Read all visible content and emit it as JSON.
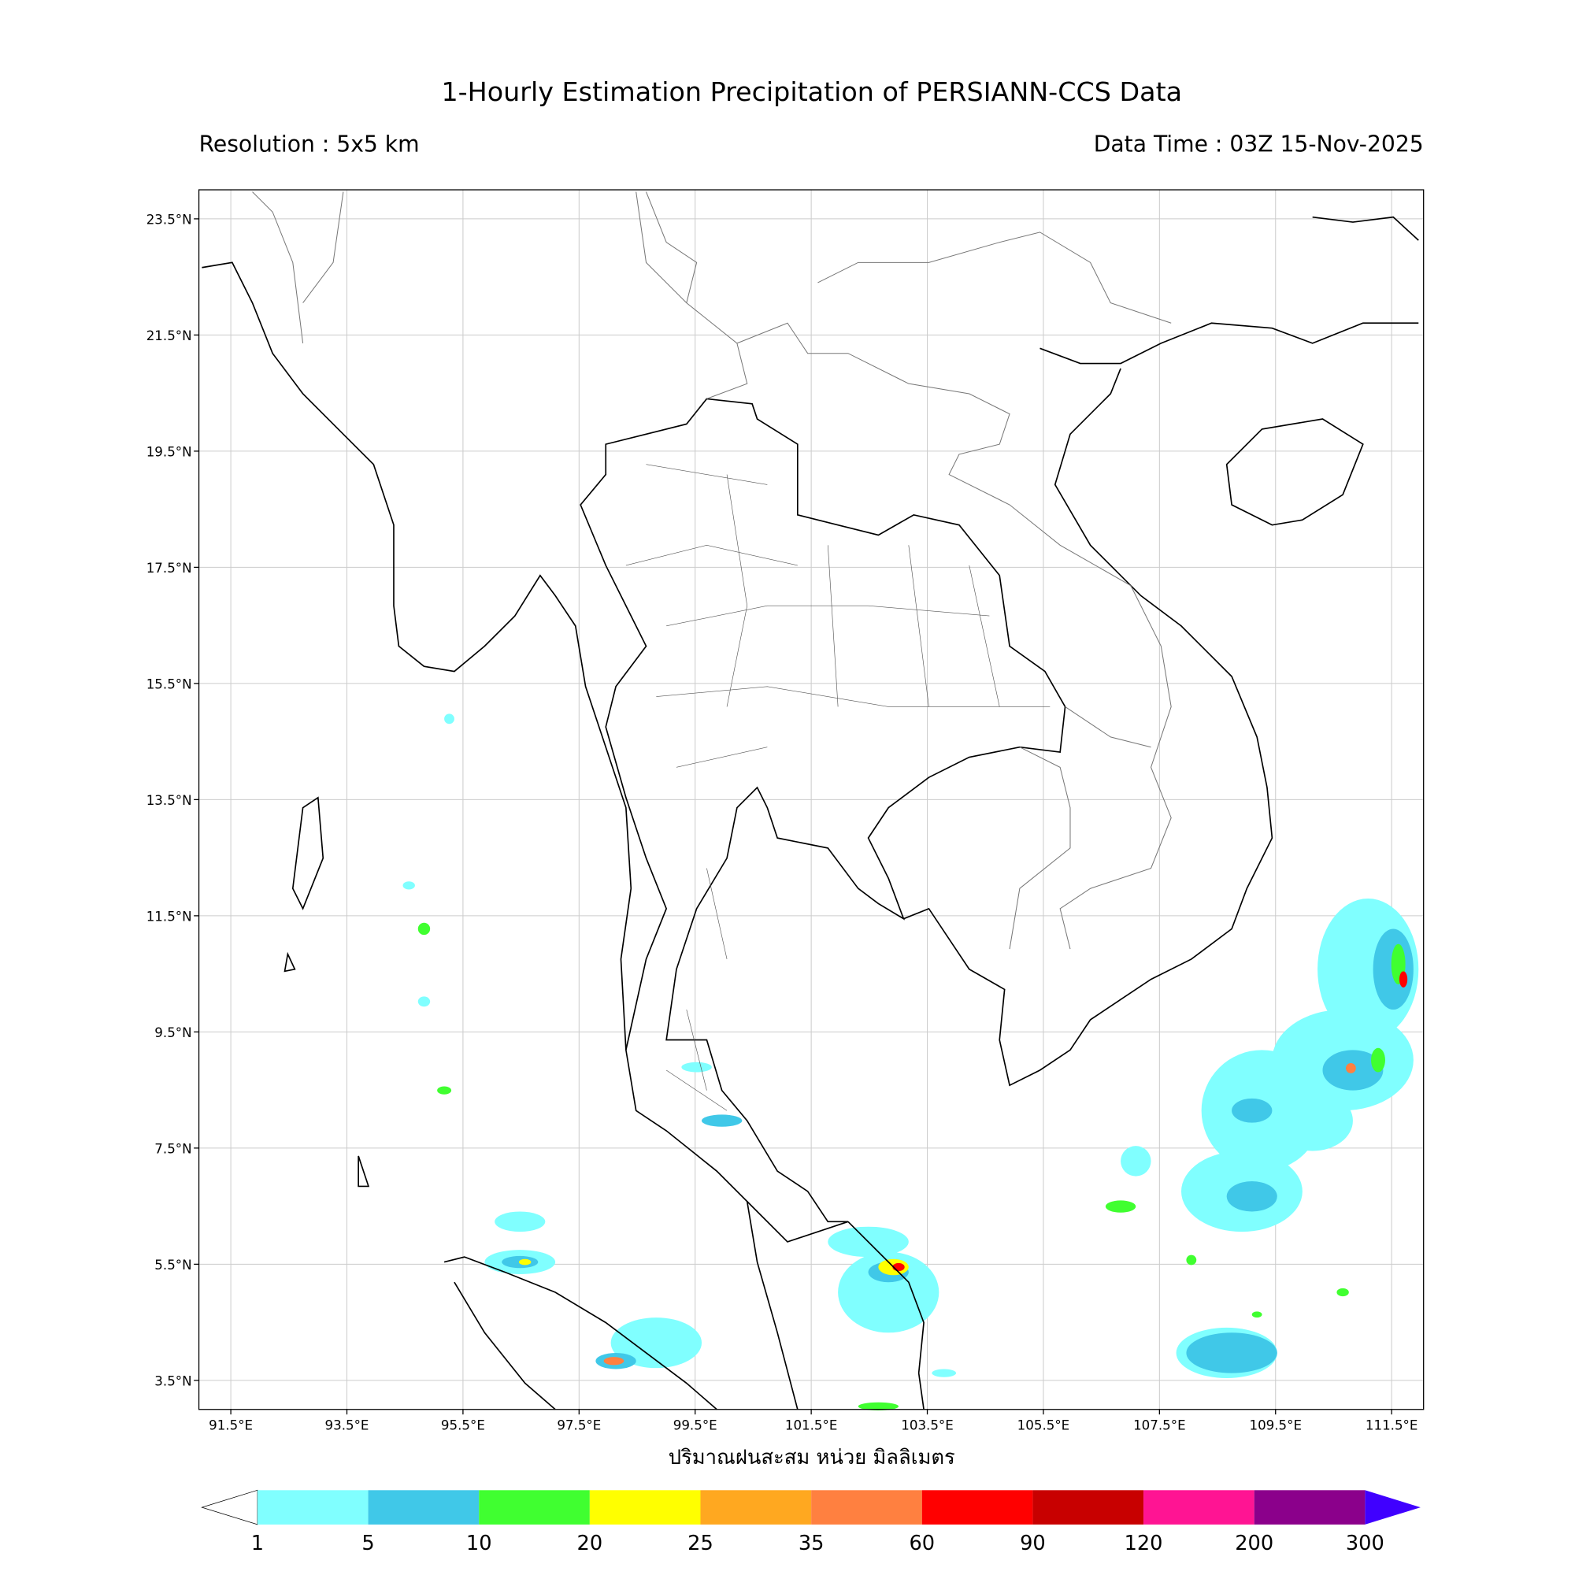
{
  "header": {
    "title": "1-Hourly Estimation Precipitation of PERSIANN-CCS Data",
    "resolution": "Resolution : 5x5 km",
    "data_time": "Data Time : 03Z 15-Nov-2025"
  },
  "map": {
    "xlim": [
      90.95,
      112.05
    ],
    "ylim": [
      3,
      24
    ],
    "grid": true,
    "xticks": [
      {
        "value": 91.5,
        "label": "91.5°E"
      },
      {
        "value": 93.5,
        "label": "93.5°E"
      },
      {
        "value": 95.5,
        "label": "95.5°E"
      },
      {
        "value": 97.5,
        "label": "97.5°E"
      },
      {
        "value": 99.5,
        "label": "99.5°E"
      },
      {
        "value": 101.5,
        "label": "101.5°E"
      },
      {
        "value": 103.5,
        "label": "103.5°E"
      },
      {
        "value": 105.5,
        "label": "105.5°E"
      },
      {
        "value": 107.5,
        "label": "107.5°E"
      },
      {
        "value": 109.5,
        "label": "109.5°E"
      },
      {
        "value": 111.5,
        "label": "111.5°E"
      }
    ],
    "yticks": [
      {
        "value": 3.5,
        "label": "3.5°N"
      },
      {
        "value": 5.5,
        "label": "5.5°N"
      },
      {
        "value": 7.5,
        "label": "7.5°N"
      },
      {
        "value": 9.5,
        "label": "9.5°N"
      },
      {
        "value": 11.5,
        "label": "11.5°N"
      },
      {
        "value": 13.5,
        "label": "13.5°N"
      },
      {
        "value": 15.5,
        "label": "15.5°N"
      },
      {
        "value": 17.5,
        "label": "17.5°N"
      },
      {
        "value": 19.5,
        "label": "19.5°N"
      },
      {
        "value": 21.5,
        "label": "21.5°N"
      },
      {
        "value": 23.5,
        "label": "23.5°N"
      }
    ],
    "xlabel": "ปริมาณฝนสะสม หน่วย มิลลิเมตร"
  },
  "colorbar": {
    "levels": [
      1,
      5,
      10,
      20,
      25,
      35,
      60,
      90,
      120,
      200,
      300
    ],
    "colors": [
      "#80ffff",
      "#40c8e8",
      "#40ff30",
      "#ffff00",
      "#ffa820",
      "#ff8040",
      "#ff0000",
      "#c80000",
      "#ff1493",
      "#8b008b"
    ],
    "under_color": "#ffffff",
    "over_color": "#4000ff"
  }
}
